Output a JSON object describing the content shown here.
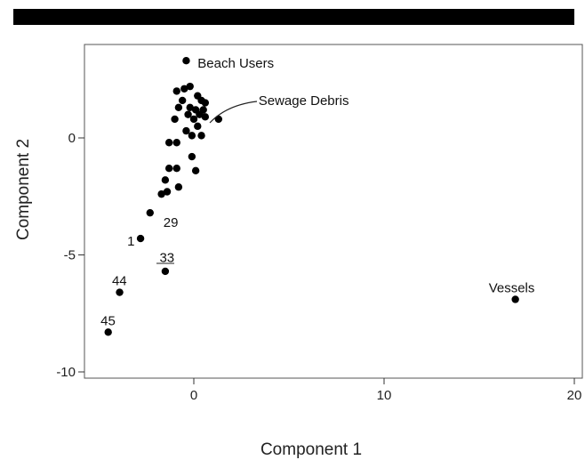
{
  "chart_data": {
    "type": "scatter",
    "xlabel": "Component 1",
    "ylabel": "Component 2",
    "xlim": [
      -5.5,
      20.5
    ],
    "ylim": [
      -10.5,
      3.6
    ],
    "x_ticks": [
      0,
      10,
      20
    ],
    "y_ticks": [
      0,
      -5,
      -10
    ],
    "x_tick_labels": [
      "0",
      "10",
      "20"
    ],
    "y_tick_labels": [
      "0",
      "-5",
      "-10"
    ],
    "grid": false,
    "legend": "none",
    "point_color": "#000000",
    "points": [
      {
        "x": -0.4,
        "y": 3.3
      },
      {
        "x": -0.5,
        "y": 2.1
      },
      {
        "x": -0.2,
        "y": 2.2
      },
      {
        "x": -0.9,
        "y": 2.0
      },
      {
        "x": 0.2,
        "y": 1.8
      },
      {
        "x": -0.6,
        "y": 1.6
      },
      {
        "x": 0.4,
        "y": 1.6
      },
      {
        "x": 0.6,
        "y": 1.5
      },
      {
        "x": -0.8,
        "y": 1.3
      },
      {
        "x": -0.2,
        "y": 1.3
      },
      {
        "x": 0.1,
        "y": 1.2
      },
      {
        "x": 0.5,
        "y": 1.2
      },
      {
        "x": 0.3,
        "y": 1.0
      },
      {
        "x": -0.3,
        "y": 1.0
      },
      {
        "x": 0.6,
        "y": 0.9
      },
      {
        "x": 1.3,
        "y": 0.8
      },
      {
        "x": 0.0,
        "y": 0.8
      },
      {
        "x": -1.0,
        "y": 0.8
      },
      {
        "x": 0.2,
        "y": 0.5
      },
      {
        "x": -0.4,
        "y": 0.3
      },
      {
        "x": -0.1,
        "y": 0.1
      },
      {
        "x": 0.4,
        "y": 0.1
      },
      {
        "x": -0.9,
        "y": -0.2
      },
      {
        "x": -1.3,
        "y": -0.2
      },
      {
        "x": -0.1,
        "y": -0.8
      },
      {
        "x": -1.3,
        "y": -1.3
      },
      {
        "x": -0.9,
        "y": -1.3
      },
      {
        "x": 0.1,
        "y": -1.4
      },
      {
        "x": -1.5,
        "y": -1.8
      },
      {
        "x": -0.8,
        "y": -2.1
      },
      {
        "x": -1.4,
        "y": -2.3
      },
      {
        "x": -1.7,
        "y": -2.4
      },
      {
        "x": -2.3,
        "y": -3.2
      },
      {
        "x": -2.8,
        "y": -4.3
      },
      {
        "x": -1.5,
        "y": -5.7
      },
      {
        "x": -3.9,
        "y": -6.6
      },
      {
        "x": -4.5,
        "y": -8.3
      },
      {
        "x": 16.9,
        "y": -6.9
      }
    ],
    "annotations": [
      {
        "text": "Beach Users",
        "x": 0.2,
        "y": 3.0
      },
      {
        "text": "Sewage Debris",
        "x": 3.4,
        "y": 1.4
      },
      {
        "text": "29",
        "x": -1.6,
        "y": -3.8
      },
      {
        "text": "1",
        "x": -3.5,
        "y": -4.6
      },
      {
        "text": "33",
        "x": -1.8,
        "y": -5.3
      },
      {
        "text": "44",
        "x": -4.3,
        "y": -6.3
      },
      {
        "text": "45",
        "x": -4.9,
        "y": -8.0
      },
      {
        "text": "Vessels",
        "x": 15.5,
        "y": -6.6
      }
    ]
  }
}
